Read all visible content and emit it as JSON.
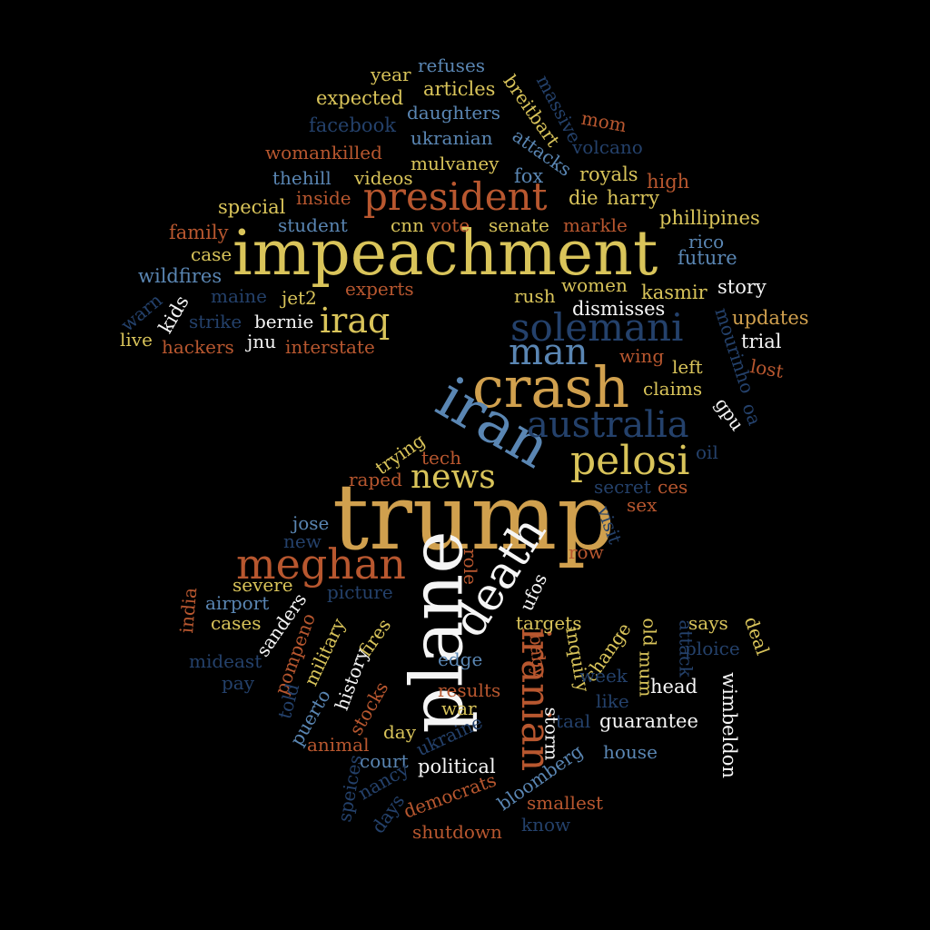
{
  "palette": {
    "background": "#000000",
    "gold": "#d9b861",
    "tan": "#d0a04e",
    "orange": "#b8572f",
    "steel": "#5a86b3",
    "navy": "#24416b",
    "white": "#f5f5f5"
  },
  "words": [
    {
      "text": "trump",
      "color": "#d0a04e"
    },
    {
      "text": "impeachment",
      "color": "#d9c45a"
    },
    {
      "text": "plane",
      "color": "#f5f5f5"
    },
    {
      "text": "crash",
      "color": "#d0a04e"
    },
    {
      "text": "iran",
      "color": "#5a86b3"
    },
    {
      "text": "death",
      "color": "#f5f5f5"
    },
    {
      "text": "meghan",
      "color": "#b8572f"
    },
    {
      "text": "president",
      "color": "#b8572f"
    },
    {
      "text": "solemani",
      "color": "#24416b"
    },
    {
      "text": "australia",
      "color": "#24416b"
    },
    {
      "text": "iranian",
      "color": "#b8572f"
    },
    {
      "text": "pelosi",
      "color": "#d9c45a"
    },
    {
      "text": "news",
      "color": "#d9c45a"
    },
    {
      "text": "man",
      "color": "#5a86b3"
    },
    {
      "text": "iraq",
      "color": "#d9c45a"
    },
    {
      "text": "year",
      "color": "#d9c45a"
    },
    {
      "text": "refuses",
      "color": "#5a86b3"
    },
    {
      "text": "breitbart",
      "color": "#d9c45a"
    },
    {
      "text": "massive",
      "color": "#24416b"
    },
    {
      "text": "expected",
      "color": "#d9c45a"
    },
    {
      "text": "articles",
      "color": "#d9c45a"
    },
    {
      "text": "daughters",
      "color": "#5a86b3"
    },
    {
      "text": "mom",
      "color": "#b8572f"
    },
    {
      "text": "facebook",
      "color": "#24416b"
    },
    {
      "text": "ukranian",
      "color": "#5a86b3"
    },
    {
      "text": "attacks",
      "color": "#5a86b3"
    },
    {
      "text": "volcano",
      "color": "#24416b"
    },
    {
      "text": "womankilled",
      "color": "#b8572f"
    },
    {
      "text": "mulvaney",
      "color": "#d9c45a"
    },
    {
      "text": "thehill",
      "color": "#5a86b3"
    },
    {
      "text": "videos",
      "color": "#d9c45a"
    },
    {
      "text": "fox",
      "color": "#5a86b3"
    },
    {
      "text": "royals",
      "color": "#d9c45a"
    },
    {
      "text": "high",
      "color": "#b8572f"
    },
    {
      "text": "special",
      "color": "#d9c45a"
    },
    {
      "text": "inside",
      "color": "#b8572f"
    },
    {
      "text": "die",
      "color": "#d9c45a"
    },
    {
      "text": "harry",
      "color": "#d9c45a"
    },
    {
      "text": "student",
      "color": "#5a86b3"
    },
    {
      "text": "cnn",
      "color": "#d9c45a"
    },
    {
      "text": "vote",
      "color": "#b8572f"
    },
    {
      "text": "senate",
      "color": "#d9c45a"
    },
    {
      "text": "markle",
      "color": "#b8572f"
    },
    {
      "text": "phillipines",
      "color": "#d9c45a"
    },
    {
      "text": "family",
      "color": "#b8572f"
    },
    {
      "text": "case",
      "color": "#d9c45a"
    },
    {
      "text": "rico",
      "color": "#5a86b3"
    },
    {
      "text": "future",
      "color": "#5a86b3"
    },
    {
      "text": "wildfires",
      "color": "#5a86b3"
    },
    {
      "text": "kids",
      "color": "#f5f5f5"
    },
    {
      "text": "maine",
      "color": "#24416b"
    },
    {
      "text": "jet2",
      "color": "#d9c45a"
    },
    {
      "text": "experts",
      "color": "#b8572f"
    },
    {
      "text": "rush",
      "color": "#d9c45a"
    },
    {
      "text": "women",
      "color": "#d9c45a"
    },
    {
      "text": "kasmir",
      "color": "#d9c45a"
    },
    {
      "text": "story",
      "color": "#f5f5f5"
    },
    {
      "text": "warn",
      "color": "#24416b"
    },
    {
      "text": "strike",
      "color": "#24416b"
    },
    {
      "text": "bernie",
      "color": "#f5f5f5"
    },
    {
      "text": "dismisses",
      "color": "#f5f5f5"
    },
    {
      "text": "mourinho",
      "color": "#24416b"
    },
    {
      "text": "updates",
      "color": "#d0a04e"
    },
    {
      "text": "live",
      "color": "#d9c45a"
    },
    {
      "text": "hackers",
      "color": "#b8572f"
    },
    {
      "text": "jnu",
      "color": "#f5f5f5"
    },
    {
      "text": "interstate",
      "color": "#b8572f"
    },
    {
      "text": "trial",
      "color": "#f5f5f5"
    },
    {
      "text": "wing",
      "color": "#b8572f"
    },
    {
      "text": "left",
      "color": "#d9c45a"
    },
    {
      "text": "lost",
      "color": "#b8572f"
    },
    {
      "text": "claims",
      "color": "#d9c45a"
    },
    {
      "text": "gpu",
      "color": "#f5f5f5"
    },
    {
      "text": "oa",
      "color": "#24416b"
    },
    {
      "text": "trying",
      "color": "#d9c45a"
    },
    {
      "text": "tech",
      "color": "#b8572f"
    },
    {
      "text": "oil",
      "color": "#24416b"
    },
    {
      "text": "raped",
      "color": "#b8572f"
    },
    {
      "text": "secret",
      "color": "#24416b"
    },
    {
      "text": "ces",
      "color": "#b8572f"
    },
    {
      "text": "sex",
      "color": "#b8572f"
    },
    {
      "text": "visit",
      "color": "#24416b"
    },
    {
      "text": "jose",
      "color": "#5a86b3"
    },
    {
      "text": "new",
      "color": "#24416b"
    },
    {
      "text": "row",
      "color": "#b8572f"
    },
    {
      "text": "role",
      "color": "#b8572f"
    },
    {
      "text": "ufos",
      "color": "#f5f5f5"
    },
    {
      "text": "india",
      "color": "#b8572f"
    },
    {
      "text": "severe",
      "color": "#d9c45a"
    },
    {
      "text": "picture",
      "color": "#24416b"
    },
    {
      "text": "airport",
      "color": "#5a86b3"
    },
    {
      "text": "sanders",
      "color": "#f5f5f5"
    },
    {
      "text": "cases",
      "color": "#d9c45a"
    },
    {
      "text": "pompeno",
      "color": "#b8572f"
    },
    {
      "text": "military",
      "color": "#d9c45a"
    },
    {
      "text": "fires",
      "color": "#d9c45a"
    },
    {
      "text": "targets",
      "color": "#d9c45a"
    },
    {
      "text": "old",
      "color": "#d9c45a"
    },
    {
      "text": "attack",
      "color": "#24416b"
    },
    {
      "text": "says",
      "color": "#d9c45a"
    },
    {
      "text": "deal",
      "color": "#d9c45a"
    },
    {
      "text": "mideast",
      "color": "#24416b"
    },
    {
      "text": "pay",
      "color": "#24416b"
    },
    {
      "text": "inquiry",
      "color": "#d9c45a"
    },
    {
      "text": "change",
      "color": "#d9c45a"
    },
    {
      "text": "baby",
      "color": "#b8572f"
    },
    {
      "text": "edge",
      "color": "#5a86b3"
    },
    {
      "text": "ploice",
      "color": "#24416b"
    },
    {
      "text": "mum",
      "color": "#d9c45a"
    },
    {
      "text": "week",
      "color": "#24416b"
    },
    {
      "text": "head",
      "color": "#f5f5f5"
    },
    {
      "text": "wimbeldon",
      "color": "#f5f5f5"
    },
    {
      "text": "told",
      "color": "#24416b"
    },
    {
      "text": "history",
      "color": "#f5f5f5"
    },
    {
      "text": "puerto",
      "color": "#5a86b3"
    },
    {
      "text": "stocks",
      "color": "#b8572f"
    },
    {
      "text": "results",
      "color": "#b8572f"
    },
    {
      "text": "war",
      "color": "#d9c45a"
    },
    {
      "text": "like",
      "color": "#24416b"
    },
    {
      "text": "taal",
      "color": "#24416b"
    },
    {
      "text": "storm",
      "color": "#f5f5f5"
    },
    {
      "text": "guarantee",
      "color": "#f5f5f5"
    },
    {
      "text": "animal",
      "color": "#b8572f"
    },
    {
      "text": "day",
      "color": "#d9c45a"
    },
    {
      "text": "ukraine",
      "color": "#24416b"
    },
    {
      "text": "court",
      "color": "#5a86b3"
    },
    {
      "text": "house",
      "color": "#5a86b3"
    },
    {
      "text": "speices",
      "color": "#24416b"
    },
    {
      "text": "nancy",
      "color": "#24416b"
    },
    {
      "text": "political",
      "color": "#f5f5f5"
    },
    {
      "text": "bloomberg",
      "color": "#5a86b3"
    },
    {
      "text": "days",
      "color": "#24416b"
    },
    {
      "text": "democrats",
      "color": "#b8572f"
    },
    {
      "text": "smallest",
      "color": "#b8572f"
    },
    {
      "text": "shutdown",
      "color": "#b8572f"
    },
    {
      "text": "know",
      "color": "#24416b"
    }
  ]
}
